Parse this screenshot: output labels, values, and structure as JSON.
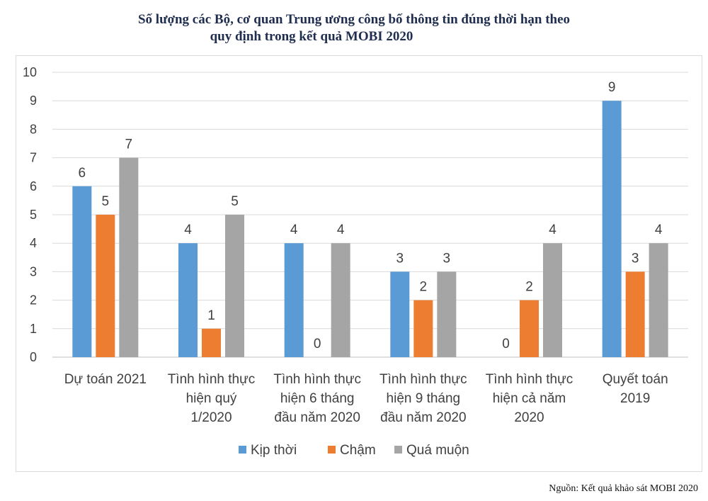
{
  "chart_data": {
    "type": "bar",
    "title_lines": [
      "Số lượng các Bộ, cơ quan Trung ương công bố thông tin đúng thời hạn theo",
      "quy định trong kết quả MOBI 2020"
    ],
    "categories": [
      [
        "Dự toán 2021"
      ],
      [
        "Tình hình thực",
        "hiện quý",
        "1/2020"
      ],
      [
        "Tình hình thực",
        "hiện 6 tháng",
        "đầu năm 2020"
      ],
      [
        "Tình hình thực",
        "hiện 9 tháng",
        "đầu năm 2020"
      ],
      [
        "Tình hình thực",
        "hiện cả năm",
        "2020"
      ],
      [
        "Quyết toán",
        "2019"
      ]
    ],
    "series": [
      {
        "name": "Kịp thời",
        "color": "#5b9bd5",
        "values": [
          6,
          4,
          4,
          3,
          0,
          9
        ]
      },
      {
        "name": "Chậm",
        "color": "#ed7d31",
        "values": [
          5,
          1,
          0,
          2,
          2,
          3
        ]
      },
      {
        "name": "Quá muộn",
        "color": "#a5a5a5",
        "values": [
          7,
          5,
          4,
          3,
          4,
          4
        ]
      }
    ],
    "data_labels": [
      [
        6,
        5,
        7
      ],
      [
        4,
        1,
        5
      ],
      [
        4,
        0,
        4
      ],
      [
        3,
        2,
        3
      ],
      [
        0,
        2,
        4
      ],
      [
        9,
        3,
        4
      ]
    ],
    "yticks": [
      0,
      1,
      2,
      3,
      4,
      5,
      6,
      7,
      8,
      9,
      10
    ],
    "ylim": [
      0,
      10
    ],
    "grid": true,
    "legend_position": "bottom"
  },
  "source_note": "Nguồn: Kết quả khảo sát MOBI 2020"
}
